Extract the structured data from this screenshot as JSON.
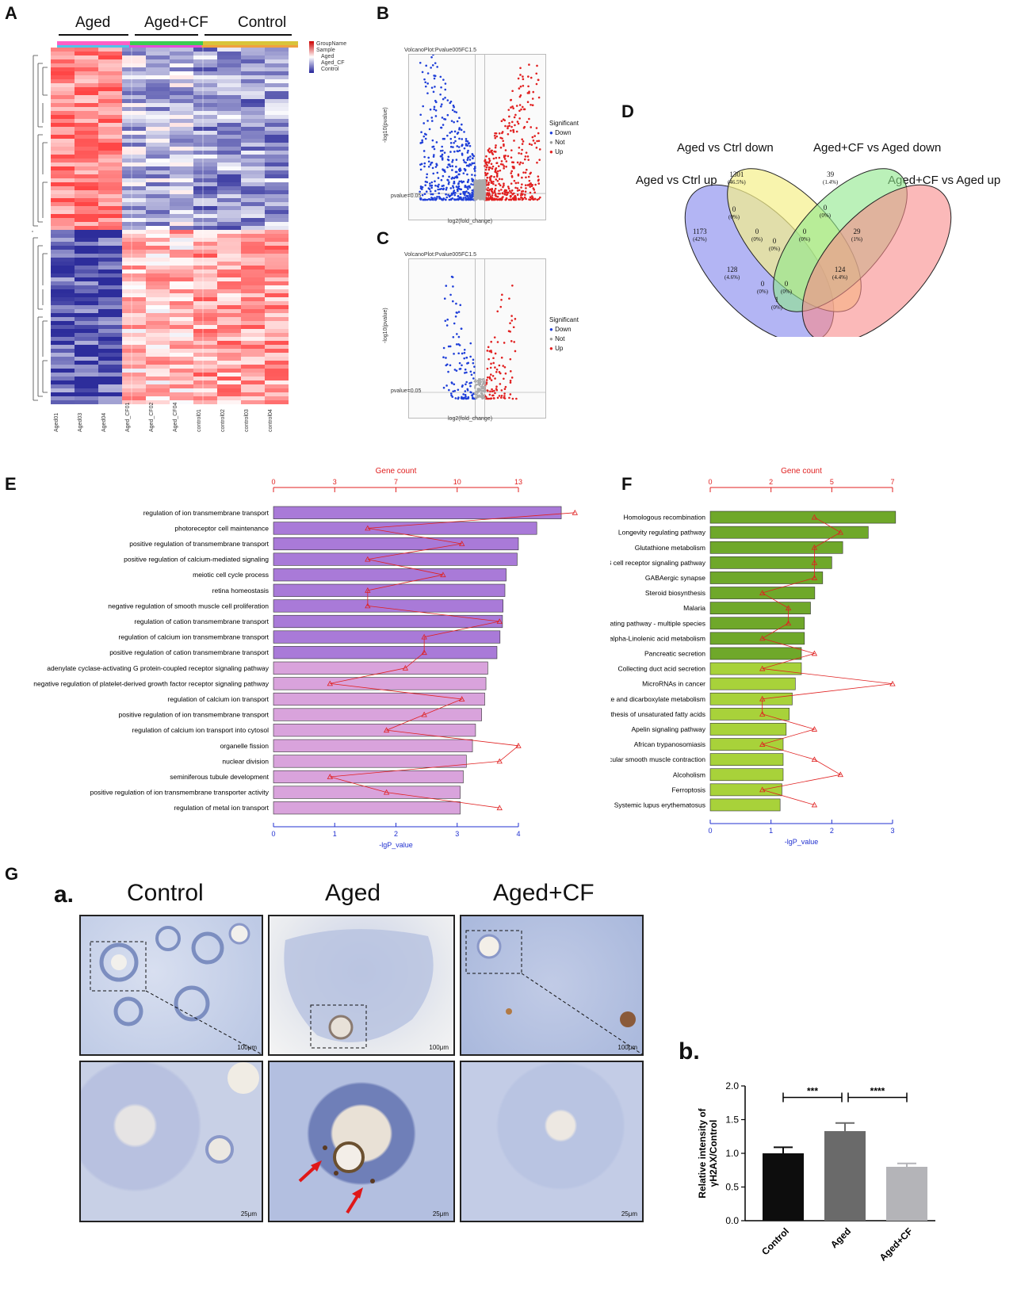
{
  "panels": {
    "A": "A",
    "B": "B",
    "C": "C",
    "D": "D",
    "E": "E",
    "F": "F",
    "G": "G"
  },
  "heatmap": {
    "groups": [
      "Aged",
      "Aged+CF",
      "Control"
    ],
    "samples": [
      "Aged01",
      "Aged03",
      "Aged04",
      "Aged_CF01",
      "Aged_CF02",
      "Aged_CF04",
      "control01",
      "control02",
      "control03",
      "control04"
    ],
    "legend_items": [
      "GroupName",
      "Sample",
      "Aged",
      "Aged_CF",
      "Control"
    ]
  },
  "volcano_b": {
    "title": "VolcanoPlot:Pvalue005FC1.5",
    "ylabel": "-log10(pvalue)",
    "xlabel": "log2(fold_change)",
    "threshold_label": "pvalue=0.05",
    "legend_title": "Significant",
    "legend": [
      "Down",
      "Not",
      "Up"
    ]
  },
  "volcano_c": {
    "title": "VolcanoPlot:Pvalue005FC1.5",
    "ylabel": "-log10(pvalue)",
    "xlabel": "log2(fold_change)",
    "threshold_label": "pvalue=0.05",
    "legend_title": "Significant",
    "legend": [
      "Down",
      "Not",
      "Up"
    ]
  },
  "venn": {
    "labels": [
      "Aged vs Ctrl down",
      "Aged+CF vs Aged down",
      "Aged vs Ctrl up",
      "Aged+CF vs Aged up"
    ],
    "regions": [
      {
        "n": "1301",
        "p": "(46.5%)"
      },
      {
        "n": "39",
        "p": "(1.4%)"
      },
      {
        "n": "1173",
        "p": "(42%)"
      },
      {
        "n": "29",
        "p": "(1%)"
      },
      {
        "n": "0",
        "p": "(0%)"
      },
      {
        "n": "0",
        "p": "(0%)"
      },
      {
        "n": "0",
        "p": "(0%)"
      },
      {
        "n": "0",
        "p": "(0%)"
      },
      {
        "n": "128",
        "p": "(4.6%)"
      },
      {
        "n": "0",
        "p": "(0%)"
      },
      {
        "n": "124",
        "p": "(4.4%)"
      },
      {
        "n": "0",
        "p": "(0%)"
      },
      {
        "n": "0",
        "p": "(0%)"
      },
      {
        "n": "1",
        "p": "(0%)"
      }
    ]
  },
  "chart_data": [
    {
      "type": "bar",
      "id": "E",
      "title": "Gene count",
      "xlabel": "-lgP_value",
      "top_ticks": [
        "0",
        "3",
        "7",
        "10",
        "13"
      ],
      "bottom_ticks": [
        "0",
        "1",
        "2",
        "3",
        "4"
      ],
      "xlim": [
        0,
        4
      ],
      "count_lim": [
        0,
        13
      ],
      "categories": [
        "regulation of ion transmembrane transport",
        "photoreceptor cell maintenance",
        "positive regulation of transmembrane transport",
        "positive regulation of calcium-mediated signaling",
        "meiotic cell cycle process",
        "retina homeostasis",
        "negative regulation of smooth muscle cell proliferation",
        "regulation of cation transmembrane transport",
        "regulation of calcium ion transmembrane transport",
        "positive regulation of cation transmembrane transport",
        "adenylate cyclase-activating G protein-coupled receptor signaling pathway",
        "negative regulation of platelet-derived growth factor receptor signaling pathway",
        "regulation of calcium ion transport",
        "positive regulation of ion transmembrane transport",
        "regulation of calcium ion transport into cytosol",
        "organelle fission",
        "nuclear division",
        "seminiferous tubule development",
        "positive regulation of ion transmembrane transporter activity",
        "regulation of metal ion transport"
      ],
      "lgp_values": [
        4.7,
        4.3,
        4.0,
        3.98,
        3.8,
        3.78,
        3.75,
        3.74,
        3.7,
        3.65,
        3.5,
        3.47,
        3.45,
        3.4,
        3.3,
        3.25,
        3.15,
        3.1,
        3.05,
        3.05
      ],
      "gene_counts": [
        16,
        5,
        10,
        5,
        9,
        5,
        5,
        12,
        8,
        8,
        7,
        3,
        10,
        8,
        6,
        13,
        12,
        3,
        6,
        12
      ]
    },
    {
      "type": "bar",
      "id": "F",
      "title": "Gene count",
      "xlabel": "-lgP_value",
      "top_ticks": [
        "0",
        "2",
        "5",
        "7"
      ],
      "bottom_ticks": [
        "0",
        "1",
        "2",
        "3"
      ],
      "xlim": [
        0,
        3
      ],
      "count_lim": [
        0,
        7
      ],
      "categories": [
        "Homologous recombination",
        "Longevity regulating pathway",
        "Glutathione metabolism",
        "B cell receptor signaling pathway",
        "GABAergic synapse",
        "Steroid biosynthesis",
        "Malaria",
        "Longevity regulating pathway - multiple species",
        "alpha-Linolenic acid metabolism",
        "Pancreatic secretion",
        "Collecting duct acid secretion",
        "MicroRNAs in cancer",
        "Glyoxylate and dicarboxylate metabolism",
        "Biosynthesis of unsaturated fatty acids",
        "Apelin signaling pathway",
        "African trypanosomiasis",
        "Vascular smooth muscle contraction",
        "Alcoholism",
        "Ferroptosis",
        "Systemic lupus erythematosus"
      ],
      "lgp_values": [
        3.05,
        2.6,
        2.18,
        2.0,
        1.85,
        1.72,
        1.65,
        1.55,
        1.55,
        1.5,
        1.5,
        1.4,
        1.35,
        1.3,
        1.25,
        1.2,
        1.2,
        1.2,
        1.18,
        1.15
      ],
      "gene_counts": [
        4,
        5,
        4,
        4,
        4,
        2,
        3,
        3,
        2,
        4,
        2,
        7,
        2,
        2,
        4,
        2,
        4,
        5,
        2,
        4
      ]
    },
    {
      "type": "bar",
      "id": "Gb",
      "ylabel": "Relative intensity of γH2AX/Control",
      "categories": [
        "Control",
        "Aged",
        "Aged+CF"
      ],
      "values": [
        1.0,
        1.33,
        0.8
      ],
      "errors": [
        0.09,
        0.12,
        0.05
      ],
      "ylim": [
        0,
        2.0
      ],
      "yticks": [
        "0.0",
        "0.5",
        "1.0",
        "1.5",
        "2.0"
      ],
      "colors": [
        "#0d0d0d",
        "#6a6a6a",
        "#b4b4b8"
      ],
      "significance": [
        {
          "from": "Control",
          "to": "Aged",
          "label": "***"
        },
        {
          "from": "Aged",
          "to": "Aged+CF",
          "label": "****"
        }
      ]
    }
  ],
  "histology": {
    "sub_a": "a.",
    "sub_b": "b.",
    "columns": [
      "Control",
      "Aged",
      "Aged+CF"
    ],
    "scale_top": "100μm",
    "scale_bottom": "25μm"
  }
}
